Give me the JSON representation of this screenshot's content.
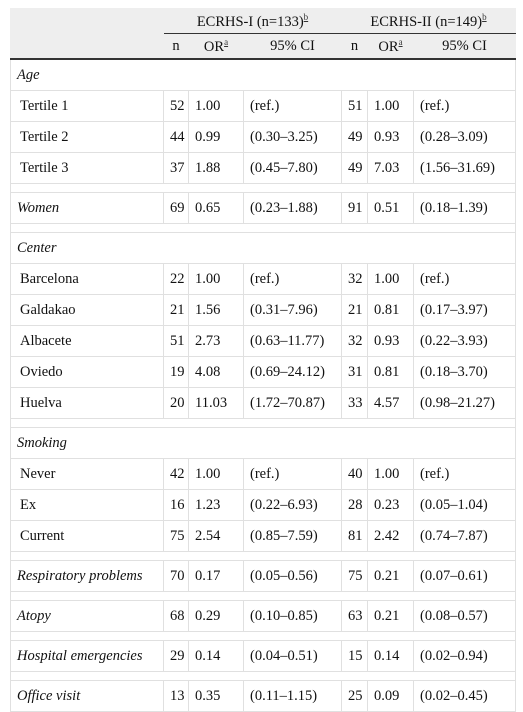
{
  "table": {
    "groups": [
      {
        "label": "ECRHS-I (n=133)",
        "note": "b",
        "columns": [
          {
            "label": "n"
          },
          {
            "label": "OR",
            "note": "a"
          },
          {
            "label": "95% CI"
          }
        ]
      },
      {
        "label": "ECRHS-II (n=149)",
        "note": "b",
        "columns": [
          {
            "label": "n"
          },
          {
            "label": "OR",
            "note": "a"
          },
          {
            "label": "95% CI"
          }
        ]
      }
    ],
    "blocks": [
      {
        "heading": "Age",
        "rows": [
          {
            "label": "Tertile 1",
            "cells": [
              "52",
              "1.00",
              "(ref.)",
              "51",
              "1.00",
              "(ref.)"
            ]
          },
          {
            "label": "Tertile 2",
            "cells": [
              "44",
              "0.99",
              "(0.30–3.25)",
              "49",
              "0.93",
              "(0.28–3.09)"
            ]
          },
          {
            "label": "Tertile 3",
            "cells": [
              "37",
              "1.88",
              "(0.45–7.80)",
              "49",
              "7.03",
              "(1.56–31.69)"
            ]
          }
        ]
      },
      {
        "heading": "Women",
        "cells": [
          "69",
          "0.65",
          "(0.23–1.88)",
          "91",
          "0.51",
          "(0.18–1.39)"
        ]
      },
      {
        "heading": "Center",
        "rows": [
          {
            "label": "Barcelona",
            "cells": [
              "22",
              "1.00",
              "(ref.)",
              "32",
              "1.00",
              "(ref.)"
            ]
          },
          {
            "label": "Galdakao",
            "cells": [
              "21",
              "1.56",
              "(0.31–7.96)",
              "21",
              "0.81",
              "(0.17–3.97)"
            ]
          },
          {
            "label": "Albacete",
            "cells": [
              "51",
              "2.73",
              "(0.63–11.77)",
              "32",
              "0.93",
              "(0.22–3.93)"
            ]
          },
          {
            "label": "Oviedo",
            "cells": [
              "19",
              "4.08",
              "(0.69–24.12)",
              "31",
              "0.81",
              "(0.18–3.70)"
            ]
          },
          {
            "label": "Huelva",
            "cells": [
              "20",
              "11.03",
              "(1.72–70.87)",
              "33",
              "4.57",
              "(0.98–21.27)"
            ]
          }
        ]
      },
      {
        "heading": "Smoking",
        "rows": [
          {
            "label": "Never",
            "cells": [
              "42",
              "1.00",
              "(ref.)",
              "40",
              "1.00",
              "(ref.)"
            ]
          },
          {
            "label": "Ex",
            "cells": [
              "16",
              "1.23",
              "(0.22–6.93)",
              "28",
              "0.23",
              "(0.05–1.04)"
            ]
          },
          {
            "label": "Current",
            "cells": [
              "75",
              "2.54",
              "(0.85–7.59)",
              "81",
              "2.42",
              "(0.74–7.87)"
            ]
          }
        ]
      },
      {
        "heading": "Respiratory problems",
        "cells": [
          "70",
          "0.17",
          "(0.05–0.56)",
          "75",
          "0.21",
          "(0.07–0.61)"
        ]
      },
      {
        "heading": "Atopy",
        "cells": [
          "68",
          "0.29",
          "(0.10–0.85)",
          "63",
          "0.21",
          "(0.08–0.57)"
        ]
      },
      {
        "heading": "Hospital emergencies",
        "cells": [
          "29",
          "0.14",
          "(0.04–0.51)",
          "15",
          "0.14",
          "(0.02–0.94)"
        ]
      },
      {
        "heading": "Office visit",
        "cells": [
          "13",
          "0.35",
          "(0.11–1.15)",
          "25",
          "0.09",
          "(0.02–0.45)"
        ]
      }
    ]
  }
}
